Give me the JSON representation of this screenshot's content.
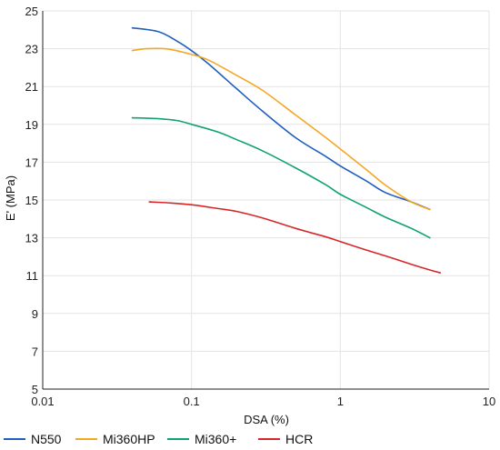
{
  "chart_data": {
    "type": "line",
    "xlabel": "DSA (%)",
    "ylabel": "E' (MPa)",
    "xscale": "log",
    "xlim": [
      0.01,
      10
    ],
    "ylim": [
      5,
      25
    ],
    "xticks": [
      0.01,
      0.1,
      1,
      10
    ],
    "xtick_labels": [
      "0.01",
      "0.1",
      "1",
      "10"
    ],
    "yticks": [
      5,
      7,
      9,
      11,
      13,
      15,
      17,
      19,
      21,
      23,
      25
    ],
    "ytick_labels": [
      "5",
      "7",
      "9",
      "11",
      "13",
      "15",
      "17",
      "19",
      "21",
      "23",
      "25"
    ],
    "grid": true,
    "legend_position": "bottom",
    "series": [
      {
        "name": "N550",
        "color": "#1f5fbf",
        "x": [
          0.04,
          0.06,
          0.08,
          0.1,
          0.13,
          0.2,
          0.3,
          0.5,
          0.8,
          1.0,
          1.5,
          2.0,
          3.0,
          4.0
        ],
        "y": [
          24.1,
          23.9,
          23.4,
          22.9,
          22.2,
          20.9,
          19.7,
          18.3,
          17.3,
          16.8,
          16.0,
          15.4,
          14.9,
          14.5
        ]
      },
      {
        "name": "Mi360HP",
        "color": "#f5a623",
        "x": [
          0.04,
          0.05,
          0.07,
          0.1,
          0.13,
          0.2,
          0.3,
          0.5,
          0.8,
          1.0,
          1.5,
          2.0,
          3.0,
          4.0
        ],
        "y": [
          22.9,
          23.0,
          22.98,
          22.7,
          22.4,
          21.6,
          20.8,
          19.5,
          18.3,
          17.7,
          16.6,
          15.8,
          14.9,
          14.5
        ]
      },
      {
        "name": "Mi360+",
        "color": "#10a36f",
        "x": [
          0.04,
          0.06,
          0.08,
          0.1,
          0.15,
          0.2,
          0.3,
          0.5,
          0.8,
          1.0,
          1.5,
          2.0,
          3.0,
          4.0
        ],
        "y": [
          19.35,
          19.3,
          19.2,
          19.0,
          18.6,
          18.2,
          17.6,
          16.7,
          15.8,
          15.3,
          14.6,
          14.1,
          13.5,
          13.0
        ]
      },
      {
        "name": "HCR",
        "color": "#d62728",
        "x": [
          0.052,
          0.07,
          0.1,
          0.15,
          0.2,
          0.3,
          0.5,
          0.8,
          1.0,
          1.5,
          2.0,
          3.0,
          4.0,
          4.7
        ],
        "y": [
          14.9,
          14.85,
          14.75,
          14.55,
          14.4,
          14.05,
          13.5,
          13.05,
          12.8,
          12.35,
          12.05,
          11.6,
          11.3,
          11.15
        ]
      }
    ]
  }
}
